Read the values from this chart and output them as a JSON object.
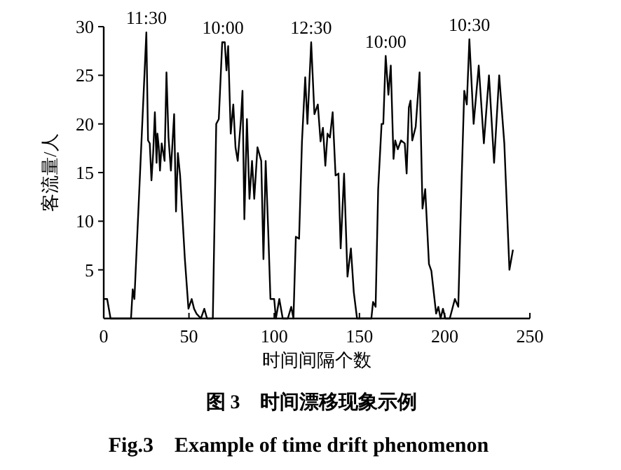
{
  "chart_data": {
    "type": "line",
    "title": "图 3　时间漂移现象示例",
    "subtitle": "Fig.3　Example of time drift phenomenon",
    "xlabel": "时间间隔个数",
    "ylabel": "客流量/人",
    "xlim": [
      0,
      250
    ],
    "ylim": [
      0,
      30
    ],
    "xticks": [
      0,
      50,
      100,
      150,
      200,
      250
    ],
    "yticks": [
      5,
      10,
      15,
      20,
      25,
      30
    ],
    "annotations": [
      {
        "text": "11:30",
        "x": 25,
        "y": 29.4
      },
      {
        "text": "10:00",
        "x": 70,
        "y": 28.4
      },
      {
        "text": "12:30",
        "x": 121.7,
        "y": 28.4
      },
      {
        "text": "10:00",
        "x": 165.4,
        "y": 27
      },
      {
        "text": "10:30",
        "x": 214.5,
        "y": 28.7
      }
    ],
    "series": [
      {
        "color": "#000000",
        "x": [
          0,
          2,
          4,
          16,
          17,
          18,
          25,
          26,
          27,
          28,
          29,
          30,
          31,
          31.5,
          32.3,
          33,
          34,
          35.7,
          36.8,
          38,
          39.4,
          41.3,
          42.4,
          43.5,
          44.8,
          47.6,
          49.7,
          51.6,
          53,
          54.4,
          57,
          59,
          60.6,
          64,
          66,
          67.5,
          69.5,
          71,
          72,
          73,
          74.5,
          76,
          77.3,
          78.6,
          80.5,
          81.4,
          82.5,
          84,
          85.5,
          87,
          88.3,
          90.2,
          92.4,
          93.7,
          95,
          96.5,
          97.8,
          100,
          101,
          103,
          105,
          108,
          110,
          111.3,
          112.7,
          114.6,
          116.3,
          118.2,
          119.5,
          121.7,
          123.6,
          125.6,
          127.2,
          128.6,
          130,
          131.3,
          132.7,
          134.3,
          136,
          137.7,
          139,
          141,
          143,
          145,
          146.7,
          148.6,
          157,
          158,
          159.5,
          161,
          163,
          164,
          165.4,
          167,
          168.4,
          170,
          171,
          172.5,
          174.4,
          176.6,
          177.7,
          179,
          180,
          181,
          183,
          185.3,
          187,
          188.6,
          190.8,
          192.2,
          195,
          196.3,
          197.6,
          199,
          200.4,
          203,
          206,
          208,
          210,
          211.5,
          213,
          214.5,
          217,
          220,
          223,
          226,
          229,
          232,
          235,
          238,
          240
        ],
        "values": [
          2,
          2,
          0,
          0,
          3,
          2,
          29.4,
          18.3,
          18,
          14.2,
          17,
          21.2,
          16,
          19,
          17.6,
          15.2,
          18,
          16.2,
          25.3,
          18.6,
          15.2,
          21,
          11,
          17,
          14.7,
          6.1,
          1,
          2,
          1,
          0.5,
          0,
          1,
          0,
          0,
          20,
          20.5,
          28.4,
          28.4,
          25.5,
          28,
          19,
          22,
          17.6,
          16.2,
          20.5,
          23.4,
          10.2,
          20.5,
          12.3,
          16.2,
          12.3,
          17.6,
          16.2,
          6.1,
          16.2,
          9,
          2,
          2,
          0,
          2,
          0,
          0,
          1.2,
          0,
          8.4,
          8.2,
          18.2,
          24.8,
          20,
          28.4,
          21,
          22,
          18.2,
          19.6,
          15.7,
          19,
          18.6,
          21.2,
          14.7,
          14.9,
          7.2,
          14.9,
          4.3,
          7.2,
          2.7,
          0,
          0,
          1.7,
          1.2,
          13.3,
          20,
          20,
          27,
          23,
          26,
          16.4,
          18.3,
          17.4,
          18.3,
          18,
          14.9,
          21.7,
          22.4,
          18.3,
          19.7,
          25.3,
          11.3,
          13.3,
          5.6,
          4.9,
          0.5,
          1.2,
          0,
          1,
          0,
          0,
          2,
          1.2,
          14.5,
          23.4,
          22,
          28.7,
          20,
          26,
          18,
          25,
          16,
          25,
          18,
          5,
          7
        ]
      }
    ]
  }
}
